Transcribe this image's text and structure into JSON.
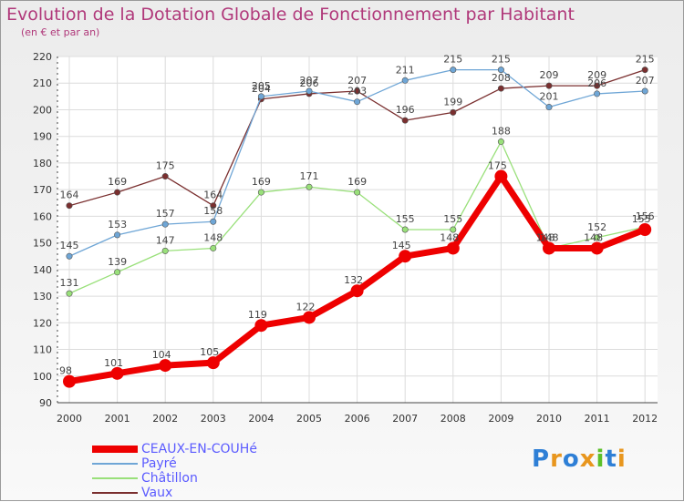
{
  "title": "Evolution de la Dotation Globale de Fonctionnement par Habitant",
  "subtitle": "(en € et par an)",
  "logo_text": "Proxiti",
  "chart_data": {
    "type": "line",
    "title": "Evolution de la Dotation Globale de Fonctionnement par Habitant",
    "subtitle": "(en € et par an)",
    "xlabel": "",
    "ylabel": "",
    "ylim": [
      90,
      220
    ],
    "yticks": [
      90,
      100,
      110,
      120,
      130,
      140,
      150,
      160,
      170,
      180,
      190,
      200,
      210,
      220
    ],
    "grid": true,
    "legend_position": "bottom-left",
    "categories": [
      "2000",
      "2001",
      "2002",
      "2003",
      "2004",
      "2005",
      "2006",
      "2007",
      "2008",
      "2009",
      "2010",
      "2011",
      "2012"
    ],
    "series": [
      {
        "name": "CEAUX-EN-COUHé",
        "color": "#ee0000",
        "values": [
          98,
          101,
          104,
          105,
          119,
          122,
          132,
          145,
          148,
          175,
          148,
          148,
          155
        ]
      },
      {
        "name": "Payré",
        "color": "#6fa6d6",
        "values": [
          145,
          153,
          157,
          158,
          205,
          207,
          203,
          211,
          215,
          215,
          201,
          206,
          207
        ]
      },
      {
        "name": "Châtillon",
        "color": "#99e07a",
        "values": [
          131,
          139,
          147,
          148,
          169,
          171,
          169,
          155,
          155,
          188,
          148,
          152,
          156
        ]
      },
      {
        "name": "Vaux",
        "color": "#7a2f2f",
        "values": [
          164,
          169,
          175,
          164,
          204,
          206,
          207,
          196,
          199,
          208,
          209,
          209,
          215
        ]
      }
    ],
    "data_labels": {
      "CEAUX-EN-COUHé": [
        "98",
        "101",
        "104",
        "105",
        "119",
        "122",
        "132",
        "145",
        "148",
        "175",
        "148",
        "148",
        "155"
      ],
      "Payré": [
        "145",
        "153",
        "157",
        "158",
        "205",
        "207",
        "203",
        "211",
        "215",
        "215",
        "201",
        "206",
        "207"
      ],
      "Châtillon": [
        "131",
        "139",
        "147",
        "148",
        "169",
        "171",
        "169",
        "155",
        "155",
        "188",
        "148",
        "152",
        "156"
      ],
      "Vaux": [
        "164",
        "169",
        "175",
        "164",
        "204",
        "206",
        "207",
        "196",
        "199",
        "208",
        "209",
        "209",
        "215"
      ]
    }
  }
}
